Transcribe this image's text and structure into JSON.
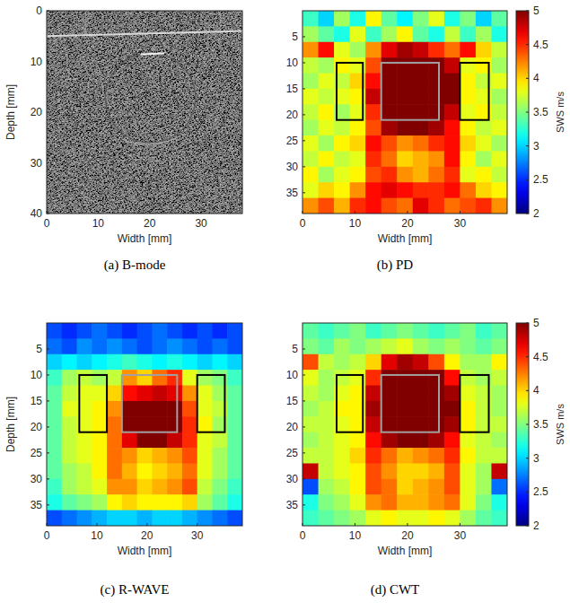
{
  "chart_data": [
    {
      "type": "image",
      "caption": "(a) B-mode",
      "x_label": "Width [mm]",
      "y_label": "Depth [mm]",
      "xlim": [
        0,
        38
      ],
      "ylim": [
        0,
        40
      ],
      "xticks": [
        0,
        10,
        20,
        30
      ],
      "yticks": [
        0,
        10,
        20,
        30,
        40
      ]
    },
    {
      "type": "heatmap",
      "caption": "(b) PD",
      "x_label": "Width [mm]",
      "xlim": [
        0,
        39
      ],
      "ylim": [
        0,
        39
      ],
      "xticks": [
        0,
        10,
        20,
        30
      ],
      "yticks": [
        5,
        10,
        15,
        20,
        25,
        30,
        35
      ],
      "x": [
        1.5,
        4.5,
        7.5,
        10.5,
        13.5,
        16.5,
        19.5,
        22.5,
        25.5,
        28.5,
        31.5,
        34.5,
        37.5
      ],
      "y": [
        1.5,
        4.5,
        7.5,
        10.5,
        13.5,
        16.5,
        19.5,
        22.5,
        25.5,
        28.5,
        31.5,
        34.5,
        37.5
      ],
      "cells": [
        [
          3.3,
          3.0,
          3.6,
          3.2,
          3.9,
          3.4,
          3.1,
          3.5,
          3.8,
          3.2,
          3.5,
          3.0,
          3.4
        ],
        [
          3.6,
          3.4,
          3.2,
          3.8,
          3.3,
          3.6,
          3.9,
          3.4,
          3.2,
          3.7,
          3.3,
          3.6,
          3.2
        ],
        [
          4.2,
          4.6,
          3.8,
          3.6,
          4.2,
          4.7,
          4.9,
          4.8,
          4.5,
          4.3,
          4.6,
          4.0,
          3.7
        ],
        [
          3.7,
          3.6,
          3.9,
          3.8,
          4.4,
          5.0,
          5.0,
          5.0,
          5.0,
          4.8,
          3.8,
          3.9,
          3.6
        ],
        [
          3.6,
          3.8,
          3.7,
          4.0,
          4.6,
          5.0,
          5.0,
          5.0,
          5.0,
          5.0,
          3.9,
          3.7,
          3.8
        ],
        [
          3.8,
          3.7,
          3.8,
          3.9,
          4.8,
          5.0,
          5.0,
          5.0,
          5.0,
          5.0,
          3.9,
          3.8,
          3.6
        ],
        [
          3.7,
          3.9,
          3.6,
          3.8,
          4.5,
          5.0,
          5.0,
          5.0,
          5.0,
          4.8,
          3.8,
          3.9,
          3.7
        ],
        [
          3.6,
          3.8,
          3.7,
          3.9,
          4.4,
          4.9,
          5.0,
          5.0,
          4.9,
          4.6,
          3.9,
          3.7,
          3.8
        ],
        [
          3.8,
          3.6,
          3.9,
          4.0,
          4.6,
          4.4,
          4.2,
          4.3,
          4.5,
          4.6,
          4.0,
          3.8,
          3.6
        ],
        [
          3.7,
          3.9,
          3.7,
          3.8,
          4.5,
          4.3,
          4.0,
          4.1,
          4.2,
          4.6,
          3.9,
          3.6,
          3.8
        ],
        [
          3.9,
          3.6,
          3.8,
          3.9,
          4.4,
          4.5,
          4.2,
          4.1,
          4.3,
          4.5,
          3.8,
          3.9,
          3.7
        ],
        [
          3.8,
          4.0,
          3.9,
          4.2,
          4.6,
          4.7,
          4.6,
          4.5,
          4.5,
          4.6,
          4.3,
          4.0,
          3.9
        ],
        [
          4.2,
          4.4,
          4.1,
          4.5,
          4.6,
          4.4,
          4.3,
          4.7,
          4.5,
          4.3,
          4.4,
          4.5,
          4.2
        ]
      ],
      "color_range": [
        2,
        5
      ],
      "color_ticks": [
        2,
        2.5,
        3,
        3.5,
        4,
        4.5,
        5
      ],
      "color_label": "SWS m/s",
      "rois": [
        {
          "x": [
            6.5,
            11.5
          ],
          "y": [
            10,
            21
          ],
          "color": "#000000"
        },
        {
          "x": [
            15,
            26
          ],
          "y": [
            10,
            21
          ],
          "color": "#a0a0a0"
        },
        {
          "x": [
            30,
            35.5
          ],
          "y": [
            10,
            21
          ],
          "color": "#000000"
        }
      ]
    },
    {
      "type": "heatmap",
      "caption": "(c) R-WAVE",
      "x_label": "Width [mm]",
      "y_label": "Depth [mm]",
      "xlim": [
        0,
        39
      ],
      "ylim": [
        0,
        39
      ],
      "xticks": [
        0,
        10,
        20,
        30
      ],
      "yticks": [
        5,
        10,
        15,
        20,
        25,
        30,
        35
      ],
      "x": [
        1.5,
        4.5,
        7.5,
        10.5,
        13.5,
        16.5,
        19.5,
        22.5,
        25.5,
        28.5,
        31.5,
        34.5,
        37.5
      ],
      "y": [
        1.5,
        4.5,
        7.5,
        10.5,
        13.5,
        16.5,
        19.5,
        22.5,
        25.5,
        28.5,
        31.5,
        34.5,
        37.5
      ],
      "cells": [
        [
          2.6,
          2.5,
          2.6,
          2.7,
          2.6,
          2.5,
          2.6,
          2.7,
          2.6,
          2.5,
          2.6,
          2.5,
          2.6
        ],
        [
          2.7,
          2.6,
          2.8,
          2.7,
          2.8,
          2.7,
          2.6,
          2.7,
          2.8,
          2.7,
          2.6,
          2.7,
          2.6
        ],
        [
          3.0,
          3.1,
          3.0,
          3.1,
          3.2,
          3.3,
          3.2,
          3.1,
          3.2,
          3.1,
          3.0,
          3.1,
          3.0
        ],
        [
          3.3,
          3.6,
          3.7,
          3.6,
          3.7,
          4.2,
          4.0,
          4.3,
          4.5,
          3.8,
          3.6,
          3.5,
          3.3
        ],
        [
          3.4,
          3.7,
          3.8,
          3.8,
          4.0,
          4.6,
          4.7,
          4.8,
          4.7,
          4.2,
          3.8,
          3.6,
          3.4
        ],
        [
          3.4,
          3.8,
          3.8,
          3.9,
          4.2,
          5.0,
          5.0,
          5.0,
          5.0,
          4.4,
          3.8,
          3.7,
          3.4
        ],
        [
          3.4,
          3.7,
          3.8,
          3.9,
          4.3,
          5.0,
          5.0,
          5.0,
          5.0,
          4.5,
          3.9,
          3.6,
          3.4
        ],
        [
          3.4,
          3.7,
          3.8,
          3.9,
          4.3,
          4.7,
          5.0,
          5.0,
          4.8,
          4.5,
          3.8,
          3.7,
          3.4
        ],
        [
          3.4,
          3.7,
          3.8,
          3.9,
          4.3,
          4.2,
          4.0,
          4.1,
          4.2,
          4.4,
          3.8,
          3.6,
          3.4
        ],
        [
          3.4,
          3.6,
          3.7,
          3.9,
          4.3,
          4.1,
          3.9,
          4.0,
          4.1,
          4.3,
          3.8,
          3.6,
          3.4
        ],
        [
          3.3,
          3.6,
          3.7,
          3.8,
          4.2,
          4.2,
          4.0,
          4.1,
          4.2,
          4.4,
          3.7,
          3.5,
          3.3
        ],
        [
          3.2,
          3.4,
          3.5,
          3.6,
          3.9,
          4.0,
          3.9,
          3.9,
          3.9,
          4.0,
          3.6,
          3.4,
          3.2
        ],
        [
          2.6,
          2.7,
          2.8,
          2.9,
          3.0,
          3.0,
          2.9,
          3.0,
          3.0,
          2.9,
          2.8,
          2.7,
          2.6
        ]
      ],
      "color_range": [
        2,
        5
      ],
      "rois": [
        {
          "x": [
            6.5,
            12
          ],
          "y": [
            10,
            21
          ],
          "color": "#000000"
        },
        {
          "x": [
            15,
            26
          ],
          "y": [
            10,
            21
          ],
          "color": "#a0a0a0"
        },
        {
          "x": [
            30,
            35.5
          ],
          "y": [
            10,
            21
          ],
          "color": "#000000"
        }
      ]
    },
    {
      "type": "heatmap",
      "caption": "(d) CWT",
      "x_label": "Width [mm]",
      "xlim": [
        0,
        39
      ],
      "ylim": [
        0,
        39
      ],
      "xticks": [
        0,
        10,
        20,
        30
      ],
      "yticks": [
        5,
        10,
        15,
        20,
        25,
        30,
        35
      ],
      "x": [
        1.5,
        4.5,
        7.5,
        10.5,
        13.5,
        16.5,
        19.5,
        22.5,
        25.5,
        28.5,
        31.5,
        34.5,
        37.5
      ],
      "y": [
        1.5,
        4.5,
        7.5,
        10.5,
        13.5,
        16.5,
        19.5,
        22.5,
        25.5,
        28.5,
        31.5,
        34.5,
        37.5
      ],
      "cells": [
        [
          3.4,
          3.3,
          3.4,
          3.5,
          3.3,
          3.4,
          3.5,
          3.4,
          3.3,
          3.4,
          3.5,
          3.3,
          3.4
        ],
        [
          3.5,
          3.4,
          3.6,
          3.5,
          3.6,
          3.7,
          3.8,
          3.6,
          3.5,
          3.6,
          3.5,
          3.4,
          3.5
        ],
        [
          4.4,
          3.7,
          3.6,
          3.7,
          4.0,
          4.7,
          4.9,
          4.8,
          4.4,
          3.9,
          3.6,
          3.6,
          3.9
        ],
        [
          3.8,
          3.6,
          3.7,
          3.8,
          4.5,
          5.0,
          5.0,
          5.0,
          5.0,
          4.6,
          3.7,
          3.6,
          3.7
        ],
        [
          3.7,
          3.6,
          3.8,
          3.9,
          4.8,
          5.0,
          5.0,
          5.0,
          5.0,
          4.9,
          3.8,
          3.7,
          3.6
        ],
        [
          3.6,
          3.7,
          3.9,
          3.9,
          4.9,
          5.0,
          5.0,
          5.0,
          5.0,
          5.0,
          3.9,
          3.7,
          3.6
        ],
        [
          3.7,
          3.7,
          3.8,
          3.9,
          4.8,
          5.0,
          5.0,
          5.0,
          5.0,
          4.9,
          3.9,
          3.7,
          3.7
        ],
        [
          3.6,
          3.7,
          3.8,
          3.9,
          4.6,
          4.9,
          5.0,
          5.0,
          4.9,
          4.6,
          3.8,
          3.7,
          3.6
        ],
        [
          3.7,
          3.7,
          3.8,
          4.0,
          4.5,
          4.3,
          4.1,
          4.2,
          4.3,
          4.5,
          3.9,
          3.7,
          3.7
        ],
        [
          4.8,
          3.7,
          3.8,
          3.9,
          4.4,
          4.2,
          4.0,
          4.0,
          4.1,
          4.4,
          3.8,
          3.6,
          4.8
        ],
        [
          2.6,
          3.6,
          3.7,
          3.9,
          4.4,
          4.3,
          4.0,
          4.1,
          4.2,
          4.4,
          3.8,
          3.6,
          2.7
        ],
        [
          3.2,
          3.5,
          3.6,
          3.8,
          4.2,
          4.3,
          4.1,
          4.1,
          4.2,
          4.3,
          3.8,
          3.5,
          3.2
        ],
        [
          3.3,
          3.4,
          3.5,
          3.6,
          3.8,
          3.9,
          3.8,
          3.8,
          3.9,
          3.8,
          3.6,
          3.4,
          3.3
        ]
      ],
      "color_range": [
        2,
        5
      ],
      "color_ticks": [
        2,
        2.5,
        3,
        3.5,
        4,
        4.5,
        5
      ],
      "color_label": "SWS m/s",
      "rois": [
        {
          "x": [
            6.5,
            11.5
          ],
          "y": [
            10,
            21
          ],
          "color": "#000000"
        },
        {
          "x": [
            15,
            26
          ],
          "y": [
            10,
            21
          ],
          "color": "#a0a0a0"
        },
        {
          "x": [
            30,
            35.5
          ],
          "y": [
            10,
            21
          ],
          "color": "#000000"
        }
      ]
    }
  ]
}
